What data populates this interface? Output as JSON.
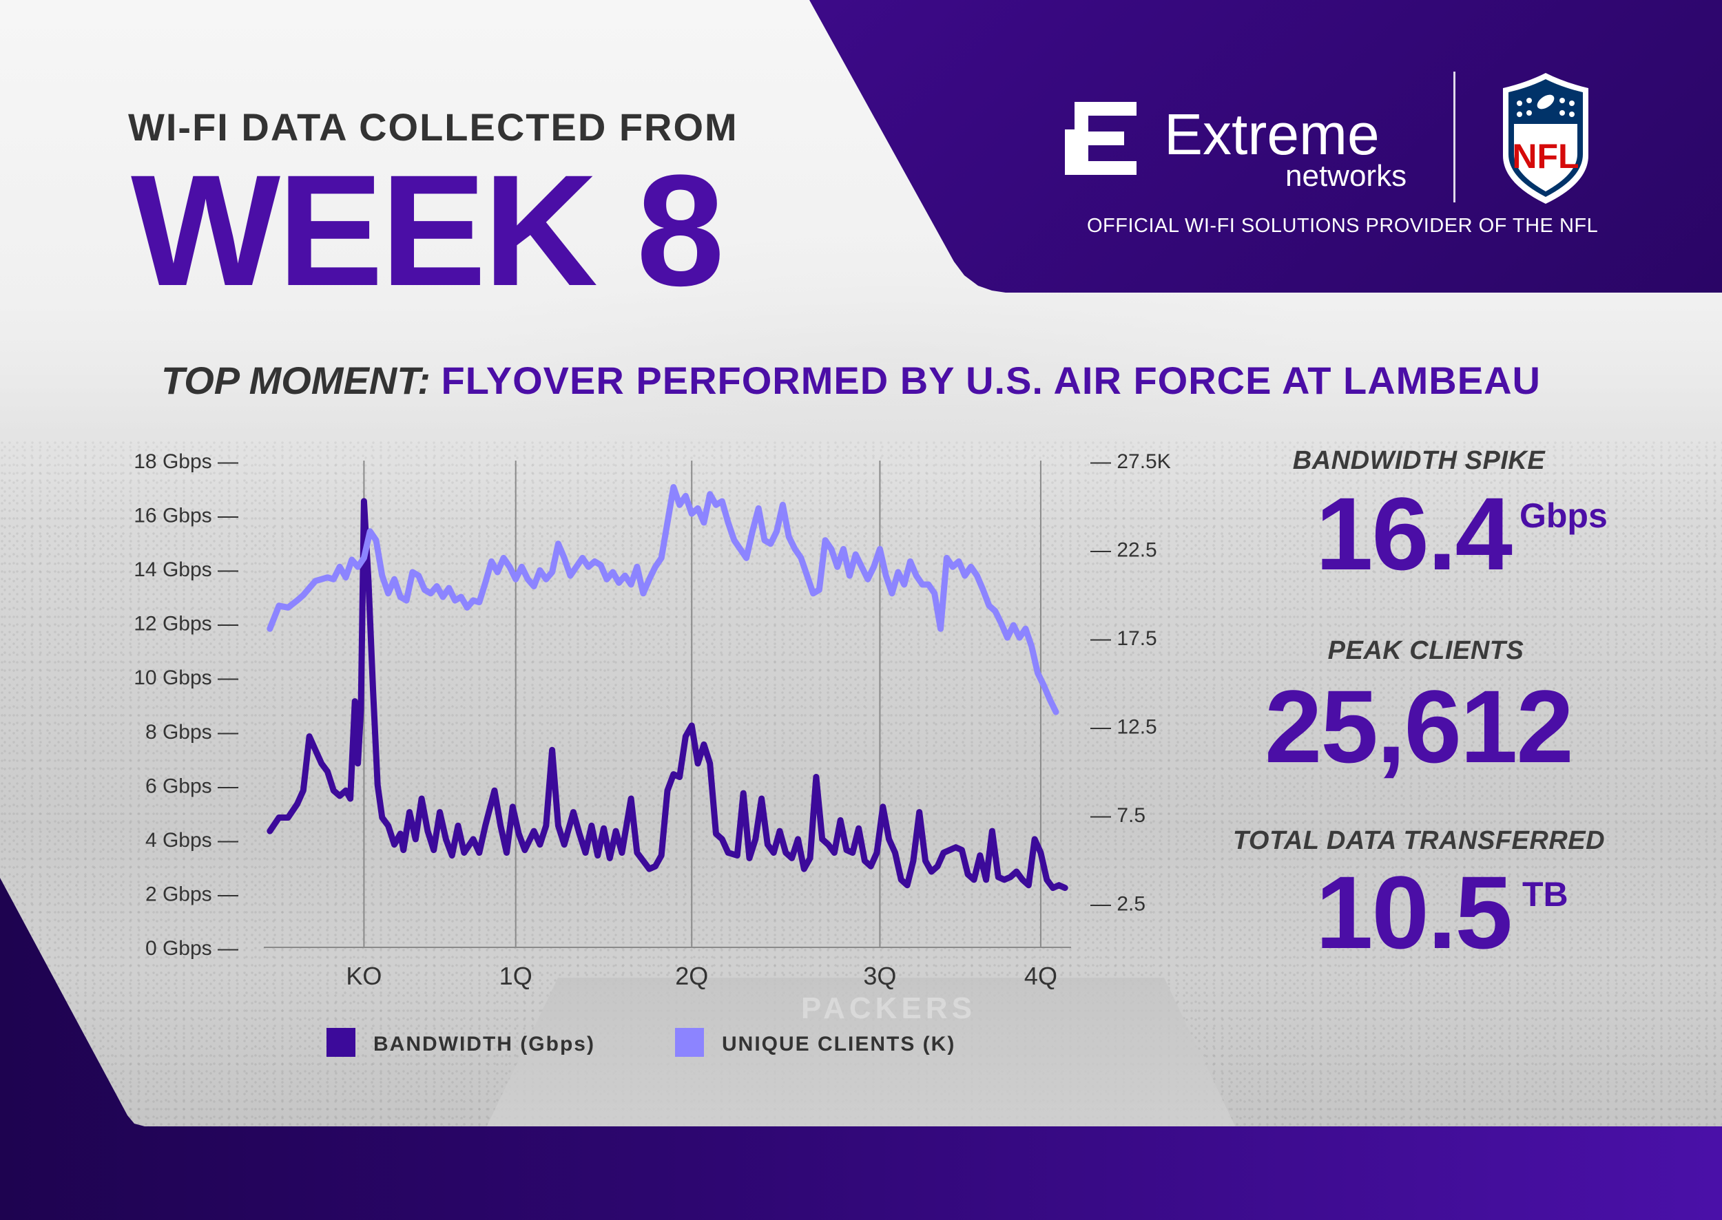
{
  "header": {
    "subtitle": "WI-FI DATA COLLECTED FROM",
    "title": "WEEK 8"
  },
  "brand": {
    "logo_name": "Extreme",
    "logo_sub": "networks",
    "provider_text": "OFFICIAL WI-FI SOLUTIONS PROVIDER OF THE NFL",
    "nfl_text": "NFL",
    "colors": {
      "purple": "#4b0ea6",
      "dark_purple": "#2d0670",
      "nfl_red": "#d50a0a",
      "nfl_blue": "#013369"
    }
  },
  "moment": {
    "label": "TOP MOMENT:",
    "text": "FLYOVER PERFORMED BY U.S. AIR FORCE AT LAMBEAU"
  },
  "stats": [
    {
      "label": "BANDWIDTH SPIKE",
      "value": "16.4",
      "unit": "Gbps"
    },
    {
      "label": "PEAK CLIENTS",
      "value": "25,612",
      "unit": ""
    },
    {
      "label": "TOTAL DATA TRANSFERRED",
      "value": "10.5",
      "unit": "TB"
    }
  ],
  "chart_data": {
    "type": "line",
    "categories": [
      "KO",
      "1Q",
      "2Q",
      "3Q",
      "4Q"
    ],
    "category_positions": [
      0,
      5,
      10.8,
      17,
      22.3
    ],
    "xlim": [
      -3.3,
      23.3
    ],
    "left_axis": {
      "ylim": [
        0,
        18
      ],
      "ticks": [
        0,
        2,
        4,
        6,
        8,
        10,
        12,
        14,
        16,
        18
      ],
      "tick_labels": [
        "0 Gbps —",
        "2 Gbps —",
        "4 Gbps —",
        "6 Gbps —",
        "8 Gbps —",
        "10 Gbps —",
        "12 Gbps —",
        "14 Gbps —",
        "16 Gbps —",
        "18 Gbps —"
      ]
    },
    "right_axis": {
      "ylim": [
        0,
        27.5
      ],
      "ticks": [
        2.5,
        7.5,
        12.5,
        17.5,
        22.5,
        27.5
      ],
      "tick_labels": [
        "— 2.5",
        "— 7.5",
        "— 12.5",
        "— 17.5",
        "— 22.5",
        "— 27.5K"
      ]
    },
    "grid": "vertical at categories",
    "legend": {
      "placement": "bottom"
    },
    "series": [
      {
        "name": "BANDWIDTH (Gbps)",
        "axis": "left",
        "color": "#3c0a9a",
        "points": [
          [
            -3.1,
            4.3
          ],
          [
            -2.8,
            4.8
          ],
          [
            -2.5,
            4.8
          ],
          [
            -2.2,
            5.3
          ],
          [
            -2.0,
            5.8
          ],
          [
            -1.8,
            7.8
          ],
          [
            -1.6,
            7.3
          ],
          [
            -1.4,
            6.8
          ],
          [
            -1.2,
            6.5
          ],
          [
            -1.0,
            5.8
          ],
          [
            -0.8,
            5.6
          ],
          [
            -0.6,
            5.8
          ],
          [
            -0.45,
            5.5
          ],
          [
            -0.3,
            9.1
          ],
          [
            -0.2,
            6.8
          ],
          [
            -0.1,
            8.8
          ],
          [
            0.0,
            16.5
          ],
          [
            0.15,
            13.5
          ],
          [
            0.3,
            9.5
          ],
          [
            0.45,
            6.0
          ],
          [
            0.6,
            4.8
          ],
          [
            0.8,
            4.5
          ],
          [
            1.0,
            3.8
          ],
          [
            1.2,
            4.2
          ],
          [
            1.3,
            3.6
          ],
          [
            1.5,
            5.0
          ],
          [
            1.7,
            4.0
          ],
          [
            1.9,
            5.5
          ],
          [
            2.1,
            4.3
          ],
          [
            2.3,
            3.6
          ],
          [
            2.5,
            5.0
          ],
          [
            2.7,
            4.0
          ],
          [
            2.9,
            3.4
          ],
          [
            3.1,
            4.5
          ],
          [
            3.3,
            3.5
          ],
          [
            3.6,
            4.0
          ],
          [
            3.8,
            3.5
          ],
          [
            4.0,
            4.5
          ],
          [
            4.3,
            5.8
          ],
          [
            4.5,
            4.5
          ],
          [
            4.7,
            3.5
          ],
          [
            4.9,
            5.2
          ],
          [
            5.1,
            4.2
          ],
          [
            5.3,
            3.6
          ],
          [
            5.6,
            4.3
          ],
          [
            5.8,
            3.8
          ],
          [
            6.0,
            4.5
          ],
          [
            6.2,
            7.3
          ],
          [
            6.4,
            4.5
          ],
          [
            6.6,
            3.8
          ],
          [
            6.9,
            5.0
          ],
          [
            7.1,
            4.2
          ],
          [
            7.3,
            3.5
          ],
          [
            7.5,
            4.5
          ],
          [
            7.7,
            3.4
          ],
          [
            7.9,
            4.4
          ],
          [
            8.1,
            3.3
          ],
          [
            8.3,
            4.3
          ],
          [
            8.5,
            3.5
          ],
          [
            8.8,
            5.5
          ],
          [
            9.0,
            3.5
          ],
          [
            9.2,
            3.2
          ],
          [
            9.4,
            2.9
          ],
          [
            9.6,
            3.0
          ],
          [
            9.8,
            3.4
          ],
          [
            10.0,
            5.8
          ],
          [
            10.2,
            6.4
          ],
          [
            10.4,
            6.3
          ],
          [
            10.6,
            7.8
          ],
          [
            10.8,
            8.2
          ],
          [
            11.0,
            6.8
          ],
          [
            11.2,
            7.5
          ],
          [
            11.4,
            6.8
          ],
          [
            11.6,
            4.2
          ],
          [
            11.8,
            4.0
          ],
          [
            12.0,
            3.5
          ],
          [
            12.3,
            3.4
          ],
          [
            12.5,
            5.7
          ],
          [
            12.7,
            3.3
          ],
          [
            12.9,
            4.0
          ],
          [
            13.1,
            5.5
          ],
          [
            13.3,
            3.8
          ],
          [
            13.5,
            3.5
          ],
          [
            13.7,
            4.3
          ],
          [
            13.9,
            3.5
          ],
          [
            14.1,
            3.3
          ],
          [
            14.3,
            4.0
          ],
          [
            14.5,
            2.9
          ],
          [
            14.7,
            3.3
          ],
          [
            14.9,
            6.3
          ],
          [
            15.1,
            4.0
          ],
          [
            15.3,
            3.8
          ],
          [
            15.5,
            3.5
          ],
          [
            15.7,
            4.7
          ],
          [
            15.9,
            3.6
          ],
          [
            16.1,
            3.5
          ],
          [
            16.3,
            4.4
          ],
          [
            16.5,
            3.2
          ],
          [
            16.7,
            3.0
          ],
          [
            16.9,
            3.5
          ],
          [
            17.1,
            5.2
          ],
          [
            17.3,
            4.0
          ],
          [
            17.5,
            3.5
          ],
          [
            17.7,
            2.5
          ],
          [
            17.9,
            2.3
          ],
          [
            18.1,
            3.2
          ],
          [
            18.3,
            5.0
          ],
          [
            18.5,
            3.2
          ],
          [
            18.7,
            2.8
          ],
          [
            18.9,
            3.0
          ],
          [
            19.1,
            3.5
          ],
          [
            19.3,
            3.6
          ],
          [
            19.5,
            3.7
          ],
          [
            19.7,
            3.6
          ],
          [
            19.9,
            2.7
          ],
          [
            20.1,
            2.5
          ],
          [
            20.3,
            3.4
          ],
          [
            20.5,
            2.5
          ],
          [
            20.7,
            4.3
          ],
          [
            20.9,
            2.6
          ],
          [
            21.1,
            2.5
          ],
          [
            21.3,
            2.6
          ],
          [
            21.5,
            2.8
          ],
          [
            21.7,
            2.5
          ],
          [
            21.9,
            2.3
          ],
          [
            22.1,
            4.0
          ],
          [
            22.3,
            3.5
          ],
          [
            22.5,
            2.5
          ],
          [
            22.7,
            2.2
          ],
          [
            22.9,
            2.3
          ],
          [
            23.1,
            2.2
          ]
        ]
      },
      {
        "name": "UNIQUE CLIENTS (K)",
        "axis": "right",
        "color": "#8c84ff",
        "points": [
          [
            -3.1,
            18.0
          ],
          [
            -2.8,
            19.3
          ],
          [
            -2.5,
            19.2
          ],
          [
            -2.2,
            19.6
          ],
          [
            -2.0,
            19.9
          ],
          [
            -1.8,
            20.3
          ],
          [
            -1.6,
            20.7
          ],
          [
            -1.4,
            20.8
          ],
          [
            -1.2,
            20.9
          ],
          [
            -1.0,
            20.8
          ],
          [
            -0.8,
            21.5
          ],
          [
            -0.6,
            20.9
          ],
          [
            -0.4,
            21.9
          ],
          [
            -0.2,
            21.5
          ],
          [
            0.0,
            22.0
          ],
          [
            0.2,
            23.5
          ],
          [
            0.4,
            23.0
          ],
          [
            0.6,
            21.0
          ],
          [
            0.8,
            20.0
          ],
          [
            1.0,
            20.8
          ],
          [
            1.2,
            19.8
          ],
          [
            1.4,
            19.6
          ],
          [
            1.6,
            21.2
          ],
          [
            1.8,
            21.0
          ],
          [
            2.0,
            20.2
          ],
          [
            2.2,
            20.0
          ],
          [
            2.4,
            20.4
          ],
          [
            2.6,
            19.8
          ],
          [
            2.8,
            20.3
          ],
          [
            3.0,
            19.6
          ],
          [
            3.2,
            19.8
          ],
          [
            3.4,
            19.2
          ],
          [
            3.6,
            19.6
          ],
          [
            3.8,
            19.5
          ],
          [
            4.0,
            20.6
          ],
          [
            4.2,
            21.8
          ],
          [
            4.4,
            21.2
          ],
          [
            4.6,
            22.0
          ],
          [
            4.8,
            21.5
          ],
          [
            5.0,
            20.8
          ],
          [
            5.2,
            21.5
          ],
          [
            5.4,
            20.8
          ],
          [
            5.6,
            20.4
          ],
          [
            5.8,
            21.3
          ],
          [
            6.0,
            20.8
          ],
          [
            6.2,
            21.2
          ],
          [
            6.4,
            22.8
          ],
          [
            6.6,
            22.0
          ],
          [
            6.8,
            21.0
          ],
          [
            7.0,
            21.5
          ],
          [
            7.2,
            22.0
          ],
          [
            7.4,
            21.5
          ],
          [
            7.6,
            21.8
          ],
          [
            7.8,
            21.6
          ],
          [
            8.0,
            20.8
          ],
          [
            8.2,
            21.2
          ],
          [
            8.4,
            20.6
          ],
          [
            8.6,
            21.0
          ],
          [
            8.8,
            20.5
          ],
          [
            9.0,
            21.5
          ],
          [
            9.2,
            20.0
          ],
          [
            9.4,
            20.8
          ],
          [
            9.6,
            21.5
          ],
          [
            9.8,
            22.0
          ],
          [
            10.0,
            24.0
          ],
          [
            10.2,
            26.0
          ],
          [
            10.4,
            25.0
          ],
          [
            10.6,
            25.5
          ],
          [
            10.8,
            24.5
          ],
          [
            11.0,
            24.8
          ],
          [
            11.2,
            24.0
          ],
          [
            11.4,
            25.6
          ],
          [
            11.6,
            25.0
          ],
          [
            11.8,
            25.2
          ],
          [
            12.0,
            24.0
          ],
          [
            12.2,
            23.0
          ],
          [
            12.4,
            22.5
          ],
          [
            12.6,
            22.0
          ],
          [
            12.8,
            23.5
          ],
          [
            13.0,
            24.8
          ],
          [
            13.2,
            23.0
          ],
          [
            13.4,
            22.8
          ],
          [
            13.6,
            23.5
          ],
          [
            13.8,
            25.0
          ],
          [
            14.0,
            23.2
          ],
          [
            14.2,
            22.5
          ],
          [
            14.4,
            22.0
          ],
          [
            14.6,
            21.0
          ],
          [
            14.8,
            20.0
          ],
          [
            15.0,
            20.2
          ],
          [
            15.2,
            23.0
          ],
          [
            15.4,
            22.5
          ],
          [
            15.6,
            21.5
          ],
          [
            15.8,
            22.5
          ],
          [
            16.0,
            21.0
          ],
          [
            16.2,
            22.2
          ],
          [
            16.4,
            21.5
          ],
          [
            16.6,
            20.8
          ],
          [
            16.8,
            21.5
          ],
          [
            17.0,
            22.5
          ],
          [
            17.2,
            21.0
          ],
          [
            17.4,
            20.0
          ],
          [
            17.6,
            21.2
          ],
          [
            17.8,
            20.5
          ],
          [
            18.0,
            21.8
          ],
          [
            18.2,
            21.0
          ],
          [
            18.4,
            20.5
          ],
          [
            18.6,
            20.5
          ],
          [
            18.8,
            20.0
          ],
          [
            19.0,
            18.0
          ],
          [
            19.2,
            22.0
          ],
          [
            19.4,
            21.5
          ],
          [
            19.6,
            21.8
          ],
          [
            19.8,
            21.0
          ],
          [
            20.0,
            21.5
          ],
          [
            20.2,
            21.0
          ],
          [
            20.4,
            20.2
          ],
          [
            20.6,
            19.3
          ],
          [
            20.8,
            19.0
          ],
          [
            21.0,
            18.3
          ],
          [
            21.2,
            17.5
          ],
          [
            21.4,
            18.2
          ],
          [
            21.6,
            17.5
          ],
          [
            21.8,
            18.0
          ],
          [
            22.0,
            17.0
          ],
          [
            22.2,
            15.5
          ],
          [
            22.4,
            14.8
          ],
          [
            22.6,
            14.0
          ],
          [
            22.8,
            13.3
          ]
        ]
      }
    ]
  }
}
